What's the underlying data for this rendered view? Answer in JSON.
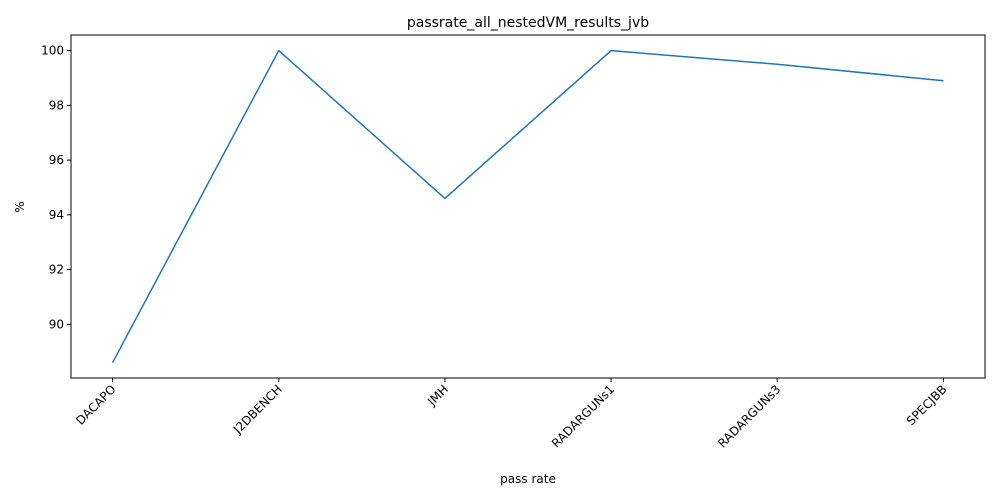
{
  "chart_data": {
    "type": "line",
    "title": "passrate_all_nestedVM_results_jvb",
    "xlabel": "pass rate",
    "ylabel": "%",
    "categories": [
      "DACAPO",
      "J2DBENCH",
      "JMH",
      "RADARGUNs1",
      "RADARGUNs3",
      "SPECJBB"
    ],
    "series": [
      {
        "values": [
          88.6,
          100.0,
          94.6,
          100.0,
          99.5,
          98.9
        ],
        "color": "#1f77b4"
      }
    ],
    "ylim": [
      88.04,
      100.57
    ],
    "yticks": [
      90,
      92,
      94,
      96,
      98,
      100
    ],
    "grid": false,
    "xtick_rotation": 45
  }
}
